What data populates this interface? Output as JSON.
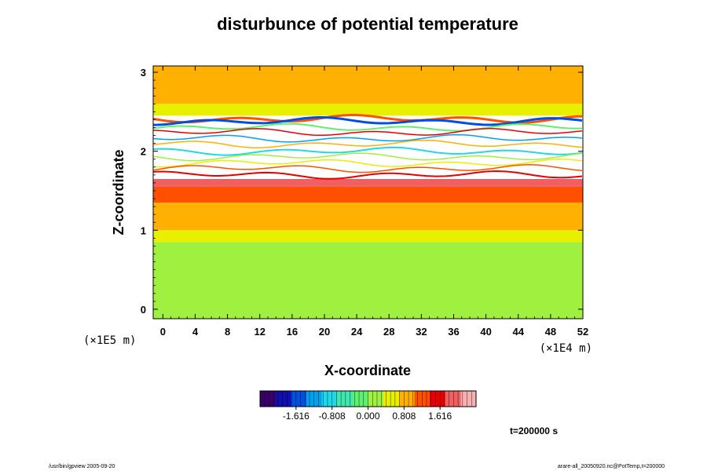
{
  "chart_data": {
    "type": "heatmap",
    "title": "disturbunce of potential temperature",
    "xlabel": "X-coordinate",
    "ylabel": "Z-coordinate",
    "x_unit": "(×1E4 m)",
    "y_unit": "(×1E5 m)",
    "x_ticks": [
      0,
      4,
      8,
      12,
      16,
      20,
      24,
      28,
      32,
      36,
      40,
      44,
      48,
      52
    ],
    "y_ticks": [
      0,
      1,
      2,
      3
    ],
    "xlim": [
      -1.2,
      52
    ],
    "ylim": [
      -0.12,
      3.08
    ],
    "colorbar": {
      "range": [
        -2.424,
        2.424
      ],
      "ticks": [
        "-1.616",
        "-0.808",
        "0.000",
        "0.808",
        "1.616"
      ],
      "tick_values": [
        -1.616,
        -0.808,
        0.0,
        0.808,
        1.616
      ],
      "colors": [
        "#3a006a",
        "#1010b0",
        "#0050e0",
        "#00a0f0",
        "#20d8e8",
        "#40e8b0",
        "#60f070",
        "#a0f040",
        "#e8f000",
        "#ffb000",
        "#ff5000",
        "#e80000",
        "#f06060",
        "#f8b0b0"
      ]
    },
    "field_bands": [
      {
        "z_from": -0.12,
        "z_to": 0.85,
        "value": 0.15
      },
      {
        "z_from": 0.85,
        "z_to": 1.0,
        "value": 0.45
      },
      {
        "z_from": 1.0,
        "z_to": 1.35,
        "value": 0.75
      },
      {
        "z_from": 1.35,
        "z_to": 1.55,
        "value": 1.1
      },
      {
        "z_from": 1.55,
        "z_to": 1.65,
        "value": 1.9
      },
      {
        "z_from": 2.45,
        "z_to": 2.6,
        "value": 0.55
      },
      {
        "z_from": 2.6,
        "z_to": 3.08,
        "value": 0.7
      }
    ],
    "saturated_band": {
      "z_from": 1.65,
      "z_to": 2.45
    }
  },
  "annotations": {
    "time": "t=200000 s",
    "footer_left": "/usr/bin/gpview 2005-09-20",
    "footer_right": "arare-all_20050920.nc@PotTemp,t=200000"
  }
}
